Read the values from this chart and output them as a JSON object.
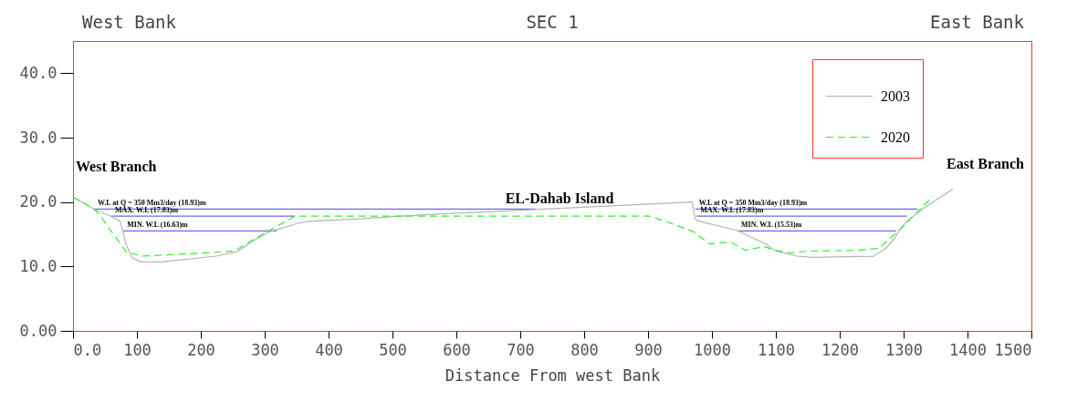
{
  "chart_data": {
    "type": "line",
    "title": "SEC 1",
    "xlabel": "Distance From west Bank",
    "annotations": [
      "West Bank",
      "East Bank",
      "West Branch",
      "East Branch",
      "EL-Dahab Island"
    ],
    "x": [
      0,
      33,
      59,
      74,
      83,
      93,
      107,
      138,
      224,
      257,
      281,
      305,
      352,
      367,
      447,
      543,
      969,
      974,
      981,
      1039,
      1086,
      1100,
      1133,
      1157,
      1253,
      1271,
      1286,
      1293,
      1305,
      1329,
      1377
    ],
    "series": [
      {
        "name": "2003",
        "color": "#b4b4b4",
        "line_style": "solid",
        "values": [
          20.8,
          18.9,
          17.8,
          17.0,
          13.4,
          11.3,
          10.7,
          10.7,
          11.6,
          12.3,
          13.9,
          15.3,
          16.7,
          17.0,
          17.4,
          18.0,
          20.0,
          17.3,
          17.0,
          15.6,
          13.4,
          12.4,
          11.6,
          11.4,
          11.6,
          12.7,
          14.4,
          15.6,
          17.0,
          18.9,
          22.0
        ]
      },
      {
        "name": "2020",
        "color": "#33ee33",
        "line_style": "dashed",
        "x": [
          0,
          33,
          43,
          83,
          107,
          186,
          253,
          281,
          347,
          903,
          933,
          971,
          996,
          1029,
          1053,
          1081,
          1100,
          1124,
          1153,
          1229,
          1261,
          1296,
          1346
        ],
        "values": [
          20.8,
          18.9,
          17.8,
          12.3,
          11.6,
          12.0,
          12.4,
          14.1,
          17.8,
          17.8,
          16.8,
          15.4,
          13.5,
          13.8,
          12.5,
          13.1,
          12.5,
          12.1,
          12.4,
          12.5,
          12.8,
          15.9,
          20.9
        ]
      },
      {
        "name": "W.L at Q = 350 Mm3/day (18.93)m",
        "color": "#6a6af0",
        "line_style": "solid",
        "x": [
          33,
          724
        ],
        "values": [
          18.9,
          18.9
        ]
      },
      {
        "name": "MAX. W.L (17.83)m",
        "color": "#6a6af0",
        "line_style": "solid",
        "x": [
          60,
          347
        ],
        "values": [
          17.8,
          17.8
        ]
      },
      {
        "name": "MIN. W.L (16.63)m",
        "color": "#6a6af0",
        "line_style": "solid",
        "x": [
          79,
          319
        ],
        "values": [
          15.5,
          15.5
        ]
      },
      {
        "name": "W.L at Q = 350 Mm3/day (18.93)m",
        "color": "#6a6af0",
        "line_style": "solid",
        "x": [
          974,
          1322
        ],
        "values": [
          18.9,
          18.9
        ]
      },
      {
        "name": "MAX. W.L (17.83)m",
        "color": "#6a6af0",
        "line_style": "solid",
        "x": [
          976,
          1305
        ],
        "values": [
          17.8,
          17.8
        ]
      },
      {
        "name": "MIN. W.L (15.53)m",
        "color": "#6a6af0",
        "line_style": "solid",
        "x": [
          1040,
          1288
        ],
        "values": [
          15.5,
          15.5
        ]
      }
    ],
    "xlim": [
      0,
      1500
    ],
    "xticks": [
      {
        "value": 0,
        "label": "0.0"
      },
      100,
      200,
      300,
      400,
      500,
      600,
      700,
      800,
      900,
      1000,
      1100,
      1200,
      1300,
      1400,
      1500
    ],
    "ylim": [
      0,
      45
    ],
    "yticks": [
      {
        "value": 0,
        "label": "0.00"
      },
      {
        "value": 10,
        "label": "10.0"
      },
      {
        "value": 20,
        "label": "20.0"
      },
      {
        "value": 30,
        "label": "30.0"
      },
      {
        "value": 40,
        "label": "40.0"
      }
    ],
    "grid": false,
    "legend": "top right",
    "marker": "none"
  }
}
